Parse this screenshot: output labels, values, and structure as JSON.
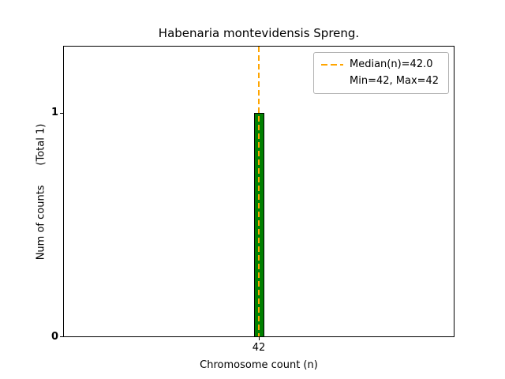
{
  "figure": {
    "title": "Habenaria montevidensis Spreng.",
    "x_axis_label": "Chromosome count (n)",
    "y_axis_label": "Num of counts      (Total 1)",
    "xtick_42": "42",
    "ytick_0": "0",
    "ytick_1": "1"
  },
  "legend": {
    "median_label": "Median(n)=42.0",
    "minmax_label": "Min=42, Max=42"
  },
  "colors": {
    "bar_fill": "#008000",
    "bar_edge": "#000000",
    "median_line": "#FFA500",
    "axes_border": "#000000",
    "background": "#ffffff"
  },
  "chart_data": {
    "type": "bar",
    "title": "Habenaria montevidensis Spreng.",
    "xlabel": "Chromosome count (n)",
    "ylabel": "Num of counts (Total 1)",
    "categories": [
      42
    ],
    "values": [
      1
    ],
    "total_counts": 1,
    "xticks": [
      42
    ],
    "yticks": [
      0,
      1
    ],
    "ylim": [
      0,
      1.3
    ],
    "median_n": 42.0,
    "min_n": 42,
    "max_n": 42,
    "grid": false,
    "legend_position": "upper right",
    "legend_entries": [
      "Median(n)=42.0",
      "Min=42, Max=42"
    ],
    "median_line": {
      "orientation": "vertical",
      "x": 42,
      "style": "dashed",
      "color": "#FFA500"
    }
  }
}
